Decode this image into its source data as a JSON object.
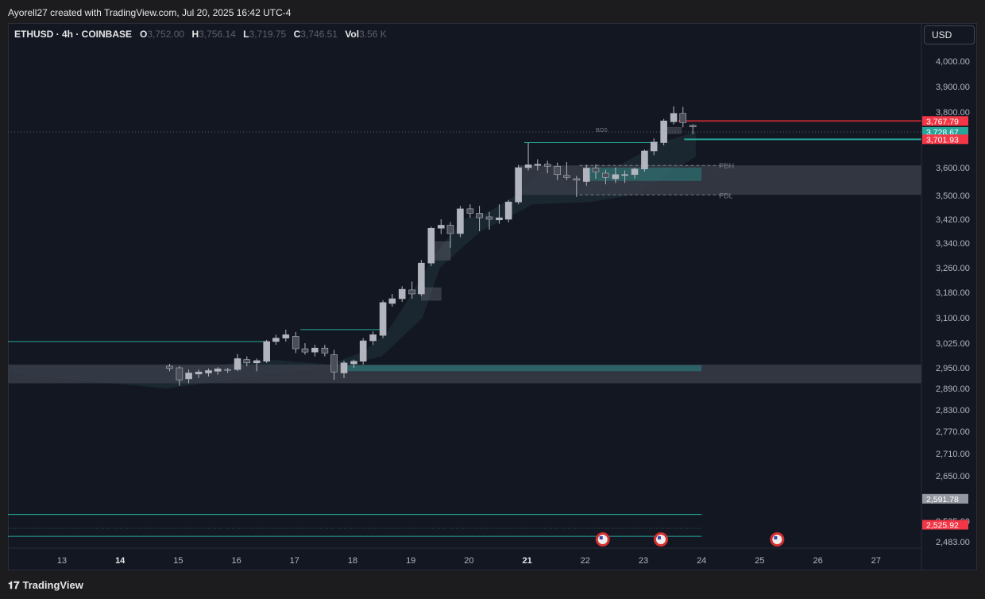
{
  "header": {
    "attribution": "Ayorell27 created with TradingView.com, Jul 20, 2025 16:42 UTC-4"
  },
  "symbol": {
    "name": "ETHUSD · 4h · COINBASE",
    "o_label": "O",
    "o": "3,752.00",
    "h_label": "H",
    "h": "3,756.14",
    "l_label": "L",
    "l": "3,719.75",
    "c_label": "C",
    "c": "3,746.51",
    "vol_label": "Vol",
    "vol": "3.56 K"
  },
  "currency_button": "USD",
  "footer": {
    "brand": "TradingView",
    "logo": "tradingview-logo"
  },
  "colors": {
    "bg": "#131722",
    "candle": "#b2b5be",
    "candle_dark": "#4a4e59",
    "teal": "#26a69a",
    "red": "#f23645",
    "gray_zone": "#3a3e4a"
  },
  "chart_data": {
    "type": "candlestick",
    "x_ticks": [
      "13",
      "14",
      "15",
      "16",
      "17",
      "18",
      "19",
      "20",
      "21",
      "22",
      "23",
      "24",
      "25",
      "26",
      "27"
    ],
    "bold_x_ticks": [
      "14",
      "21"
    ],
    "y_ticks": [
      "4,000.00",
      "3,900.00",
      "3,800.00",
      "3,600.00",
      "3,500.00",
      "3,420.00",
      "3,340.00",
      "3,260.00",
      "3,180.00",
      "3,100.00",
      "3,025.00",
      "2,950.00",
      "2,890.00",
      "2,830.00",
      "2,770.00",
      "2,710.00",
      "2,650.00",
      "2,535.00",
      "2,483.00"
    ],
    "y_tick_values": [
      4000,
      3900,
      3800,
      3600,
      3500,
      3420,
      3340,
      3260,
      3180,
      3100,
      3025,
      2950,
      2890,
      2830,
      2770,
      2710,
      2650,
      2535,
      2483
    ],
    "price_labels": [
      {
        "value": 3767.79,
        "text": "3,767.79",
        "color": "#f23645"
      },
      {
        "value": 3728.67,
        "text": "3,728.67",
        "color": "#26a69a"
      },
      {
        "value": 3701.93,
        "text": "3,701.93",
        "color": "#f23645"
      },
      {
        "value": 2591.78,
        "text": "2,591.78",
        "color": "#9598a1"
      },
      {
        "value": 2525.92,
        "text": "2,525.92",
        "color": "#f23645"
      }
    ],
    "annotations": [
      {
        "text": "BOS",
        "value": 3700
      },
      {
        "text": "PDH",
        "value": 3608
      },
      {
        "text": "PDL",
        "value": 3502
      }
    ],
    "candles": [
      {
        "x": 2.85,
        "o": 2955,
        "h": 2962,
        "l": 2940,
        "c": 2948
      },
      {
        "x": 3.02,
        "o": 2950,
        "h": 2955,
        "l": 2898,
        "c": 2915
      },
      {
        "x": 3.18,
        "o": 2918,
        "h": 2945,
        "l": 2905,
        "c": 2935
      },
      {
        "x": 3.35,
        "o": 2932,
        "h": 2945,
        "l": 2920,
        "c": 2938
      },
      {
        "x": 3.52,
        "o": 2935,
        "h": 2948,
        "l": 2925,
        "c": 2942
      },
      {
        "x": 3.68,
        "o": 2940,
        "h": 2952,
        "l": 2930,
        "c": 2947
      },
      {
        "x": 3.85,
        "o": 2945,
        "h": 2950,
        "l": 2935,
        "c": 2943
      },
      {
        "x": 4.02,
        "o": 2945,
        "h": 2992,
        "l": 2940,
        "c": 2978
      },
      {
        "x": 4.18,
        "o": 2975,
        "h": 2985,
        "l": 2955,
        "c": 2965
      },
      {
        "x": 4.35,
        "o": 2965,
        "h": 2978,
        "l": 2940,
        "c": 2972
      },
      {
        "x": 4.52,
        "o": 2970,
        "h": 3035,
        "l": 2965,
        "c": 3030
      },
      {
        "x": 4.68,
        "o": 3030,
        "h": 3050,
        "l": 3020,
        "c": 3040
      },
      {
        "x": 4.85,
        "o": 3040,
        "h": 3065,
        "l": 3030,
        "c": 3050
      },
      {
        "x": 5.02,
        "o": 3045,
        "h": 3058,
        "l": 2995,
        "c": 3008
      },
      {
        "x": 5.18,
        "o": 3008,
        "h": 3025,
        "l": 2990,
        "c": 2998
      },
      {
        "x": 5.35,
        "o": 2998,
        "h": 3020,
        "l": 2985,
        "c": 3010
      },
      {
        "x": 5.52,
        "o": 3010,
        "h": 3020,
        "l": 2985,
        "c": 2995
      },
      {
        "x": 5.68,
        "o": 2990,
        "h": 3005,
        "l": 2915,
        "c": 2938
      },
      {
        "x": 5.85,
        "o": 2935,
        "h": 2972,
        "l": 2920,
        "c": 2965
      },
      {
        "x": 6.02,
        "o": 2962,
        "h": 2975,
        "l": 2950,
        "c": 2970
      },
      {
        "x": 6.18,
        "o": 2970,
        "h": 3040,
        "l": 2960,
        "c": 3032
      },
      {
        "x": 6.35,
        "o": 3032,
        "h": 3060,
        "l": 3020,
        "c": 3050
      },
      {
        "x": 6.52,
        "o": 3048,
        "h": 3155,
        "l": 3040,
        "c": 3148
      },
      {
        "x": 6.68,
        "o": 3145,
        "h": 3175,
        "l": 3135,
        "c": 3160
      },
      {
        "x": 6.85,
        "o": 3160,
        "h": 3200,
        "l": 3150,
        "c": 3190
      },
      {
        "x": 7.02,
        "o": 3188,
        "h": 3215,
        "l": 3160,
        "c": 3175
      },
      {
        "x": 7.18,
        "o": 3175,
        "h": 3285,
        "l": 3168,
        "c": 3275
      },
      {
        "x": 7.35,
        "o": 3275,
        "h": 3395,
        "l": 3265,
        "c": 3390
      },
      {
        "x": 7.52,
        "o": 3390,
        "h": 3420,
        "l": 3370,
        "c": 3400
      },
      {
        "x": 7.68,
        "o": 3400,
        "h": 3410,
        "l": 3325,
        "c": 3372
      },
      {
        "x": 7.85,
        "o": 3372,
        "h": 3465,
        "l": 3360,
        "c": 3455
      },
      {
        "x": 8.02,
        "o": 3455,
        "h": 3470,
        "l": 3425,
        "c": 3440
      },
      {
        "x": 8.18,
        "o": 3440,
        "h": 3465,
        "l": 3380,
        "c": 3425
      },
      {
        "x": 8.35,
        "o": 3428,
        "h": 3445,
        "l": 3385,
        "c": 3420
      },
      {
        "x": 8.52,
        "o": 3418,
        "h": 3470,
        "l": 3405,
        "c": 3425
      },
      {
        "x": 8.68,
        "o": 3420,
        "h": 3485,
        "l": 3410,
        "c": 3478
      },
      {
        "x": 8.85,
        "o": 3478,
        "h": 3610,
        "l": 3470,
        "c": 3600
      },
      {
        "x": 9.02,
        "o": 3600,
        "h": 3690,
        "l": 3590,
        "c": 3610
      },
      {
        "x": 9.18,
        "o": 3608,
        "h": 3630,
        "l": 3590,
        "c": 3612
      },
      {
        "x": 9.35,
        "o": 3612,
        "h": 3625,
        "l": 3580,
        "c": 3605
      },
      {
        "x": 9.52,
        "o": 3605,
        "h": 3618,
        "l": 3555,
        "c": 3575
      },
      {
        "x": 9.68,
        "o": 3572,
        "h": 3620,
        "l": 3555,
        "c": 3565
      },
      {
        "x": 9.85,
        "o": 3560,
        "h": 3570,
        "l": 3495,
        "c": 3555
      },
      {
        "x": 10.02,
        "o": 3550,
        "h": 3610,
        "l": 3535,
        "c": 3598
      },
      {
        "x": 10.18,
        "o": 3598,
        "h": 3612,
        "l": 3560,
        "c": 3585
      },
      {
        "x": 10.35,
        "o": 3580,
        "h": 3592,
        "l": 3540,
        "c": 3565
      },
      {
        "x": 10.52,
        "o": 3560,
        "h": 3600,
        "l": 3545,
        "c": 3575
      },
      {
        "x": 10.68,
        "o": 3572,
        "h": 3590,
        "l": 3545,
        "c": 3575
      },
      {
        "x": 10.85,
        "o": 3575,
        "h": 3600,
        "l": 3560,
        "c": 3595
      },
      {
        "x": 11.02,
        "o": 3595,
        "h": 3665,
        "l": 3585,
        "c": 3660
      },
      {
        "x": 11.18,
        "o": 3660,
        "h": 3705,
        "l": 3645,
        "c": 3692
      },
      {
        "x": 11.35,
        "o": 3690,
        "h": 3775,
        "l": 3680,
        "c": 3768
      },
      {
        "x": 11.52,
        "o": 3765,
        "h": 3822,
        "l": 3755,
        "c": 3795
      },
      {
        "x": 11.68,
        "o": 3795,
        "h": 3820,
        "l": 3745,
        "c": 3762
      },
      {
        "x": 11.85,
        "o": 3752,
        "h": 3756,
        "l": 3720,
        "c": 3747
      }
    ]
  }
}
